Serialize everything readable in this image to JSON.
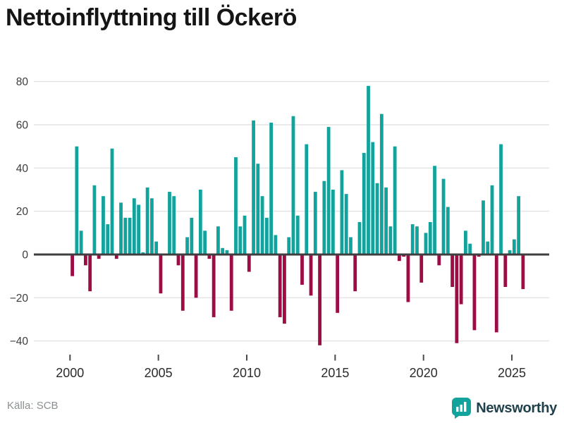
{
  "title": "Nettoinflyttning till Öckerö",
  "source": "Källa: SCB",
  "brand": "Newsworthy",
  "colors": {
    "positive_bar": "#13A39D",
    "negative_bar": "#9D0C44",
    "gridline": "#e4e4e4",
    "zero_line": "#3f3f3f",
    "axis_text": "#3c3c3c",
    "tick_mark": "#4a4a4a",
    "title_text": "#151515",
    "source_text": "#8a9092",
    "brand_text": "#20414c"
  },
  "chart_data": {
    "type": "bar",
    "title": "Nettoinflyttning till Öckerö",
    "xlabel": "",
    "ylabel": "",
    "frequency": "quarterly",
    "x_start": "2000-Q1",
    "x_end": "2025-Q3",
    "x_tick_labels": [
      "2000",
      "2005",
      "2010",
      "2015",
      "2020",
      "2025"
    ],
    "y_ticks": [
      80,
      60,
      40,
      20,
      0,
      -20,
      -40
    ],
    "ylim": [
      -46,
      86
    ],
    "grid": "horizontal",
    "legend": "none",
    "values": [
      -10,
      50,
      11,
      -5,
      -17,
      32,
      -2,
      27,
      14,
      49,
      -2,
      24,
      17,
      17,
      26,
      23,
      1,
      31,
      26,
      6,
      -18,
      0,
      29,
      27,
      -5,
      -26,
      8,
      17,
      -20,
      30,
      11,
      -2,
      -29,
      13,
      3,
      2,
      -26,
      45,
      13,
      18,
      -8,
      62,
      42,
      27,
      17,
      61,
      9,
      -29,
      -32,
      8,
      64,
      18,
      -14,
      51,
      -19,
      29,
      -42,
      34,
      59,
      30,
      -27,
      39,
      28,
      8,
      -17,
      15,
      47,
      78,
      52,
      33,
      65,
      31,
      13,
      50,
      -3,
      -1,
      -22,
      14,
      13,
      -13,
      10,
      15,
      41,
      -5,
      35,
      22,
      -15,
      -41,
      -23,
      11,
      5,
      -35,
      -1,
      25,
      6,
      32,
      -36,
      51,
      -15,
      2,
      7,
      27,
      -16
    ]
  }
}
